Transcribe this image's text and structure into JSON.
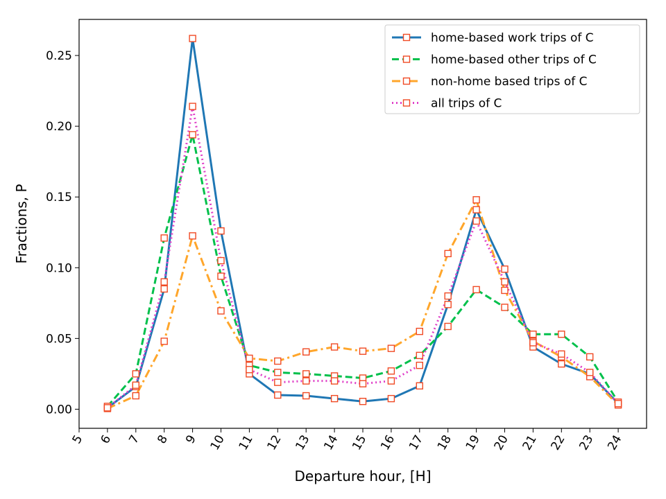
{
  "chart_data": {
    "type": "line",
    "xlabel": "Departure hour, [H]",
    "ylabel": "Fractions, P",
    "xlim": [
      5,
      25
    ],
    "ylim": [
      -0.0135,
      0.2755
    ],
    "x_ticks": [
      "5",
      "6",
      "7",
      "8",
      "9",
      "10",
      "11",
      "12",
      "13",
      "14",
      "15",
      "16",
      "17",
      "18",
      "19",
      "20",
      "21",
      "22",
      "23",
      "24"
    ],
    "y_ticks": [
      "0.00",
      "0.05",
      "0.10",
      "0.15",
      "0.20",
      "0.25"
    ],
    "x": [
      6,
      7,
      8,
      9,
      10,
      11,
      12,
      13,
      14,
      15,
      16,
      17,
      18,
      19,
      20,
      21,
      22,
      23,
      24
    ],
    "legend_position": "top-right",
    "marker": "open-square",
    "marker_color": "#f04923",
    "series": [
      {
        "name": "home-based work trips of C",
        "color": "#1f77b4",
        "style": "solid",
        "values": [
          0.001,
          0.016,
          0.085,
          0.262,
          0.126,
          0.025,
          0.01,
          0.0095,
          0.0075,
          0.0055,
          0.0075,
          0.0165,
          0.074,
          0.141,
          0.099,
          0.044,
          0.032,
          0.025,
          0.004
        ]
      },
      {
        "name": "home-based other trips of C",
        "color": "#00c04b",
        "style": "dashed",
        "values": [
          0.002,
          0.025,
          0.121,
          0.194,
          0.094,
          0.031,
          0.026,
          0.025,
          0.0235,
          0.022,
          0.027,
          0.038,
          0.0585,
          0.0845,
          0.072,
          0.053,
          0.053,
          0.037,
          0.005
        ]
      },
      {
        "name": "non-home based trips of C",
        "color": "#ffa62b",
        "style": "dashdot",
        "values": [
          0.0005,
          0.0095,
          0.048,
          0.1225,
          0.0695,
          0.036,
          0.034,
          0.0405,
          0.044,
          0.041,
          0.043,
          0.055,
          0.11,
          0.148,
          0.084,
          0.048,
          0.037,
          0.023,
          0.003
        ]
      },
      {
        "name": "all trips of C",
        "color": "#e040c8",
        "style": "dotted",
        "values": [
          0.001,
          0.017,
          0.09,
          0.214,
          0.105,
          0.028,
          0.019,
          0.02,
          0.02,
          0.018,
          0.02,
          0.031,
          0.08,
          0.133,
          0.09,
          0.047,
          0.039,
          0.026,
          0.004
        ]
      }
    ]
  }
}
